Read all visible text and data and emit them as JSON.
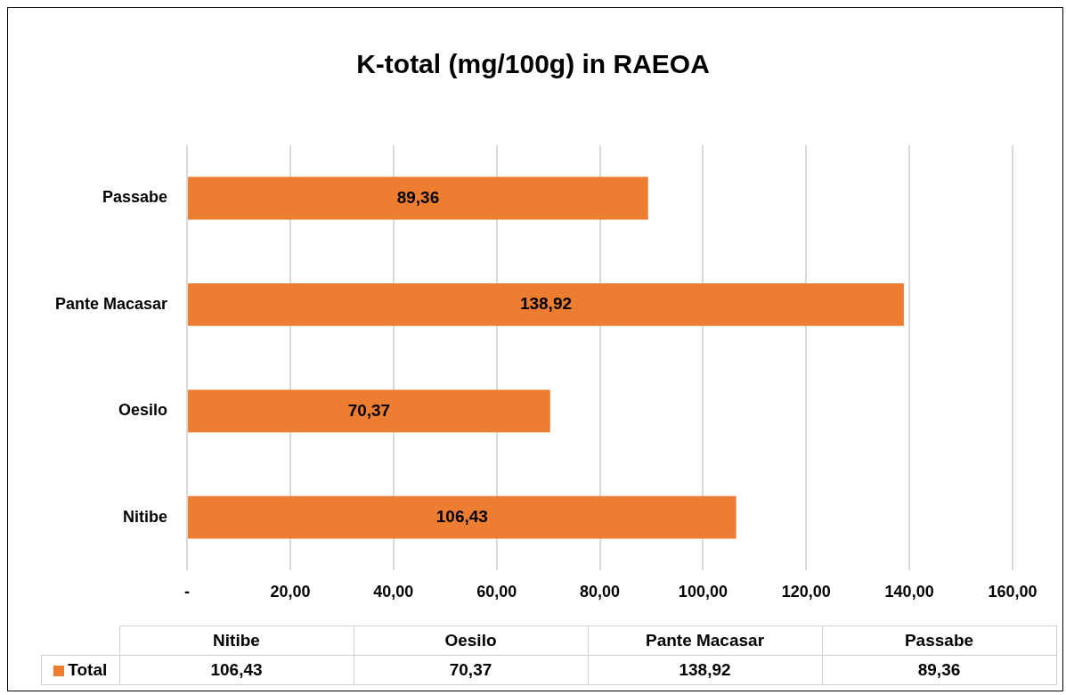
{
  "chart_data": {
    "type": "bar",
    "title": "K-total (mg/100g) in RAEOA",
    "orientation": "horizontal",
    "categories": [
      "Passabe",
      "Pante Macasar",
      "Oesilo",
      "Nitibe"
    ],
    "series": [
      {
        "name": "Total",
        "color": "#ed7d31",
        "values": [
          89.36,
          138.92,
          70.37,
          106.43
        ],
        "value_labels": [
          "89,36",
          "138,92",
          "70,37",
          "106,43"
        ]
      }
    ],
    "xlim": [
      0,
      160
    ],
    "xticks": [
      {
        "value": 0,
        "label": "-"
      },
      {
        "value": 20,
        "label": "20,00"
      },
      {
        "value": 40,
        "label": "40,00"
      },
      {
        "value": 60,
        "label": "60,00"
      },
      {
        "value": 80,
        "label": "80,00"
      },
      {
        "value": 100,
        "label": "100,00"
      },
      {
        "value": 120,
        "label": "120,00"
      },
      {
        "value": 140,
        "label": "140,00"
      },
      {
        "value": 160,
        "label": "160,00"
      }
    ],
    "grid": "x",
    "legend": "bottom"
  }
}
